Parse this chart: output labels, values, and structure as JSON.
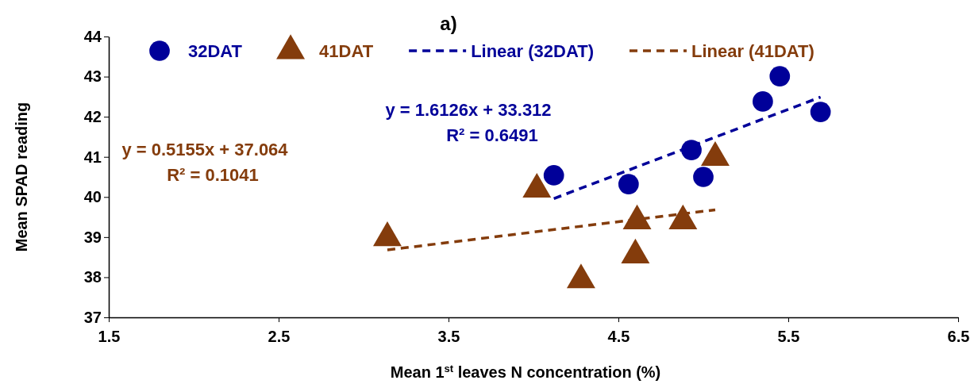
{
  "chart_data": {
    "type": "scatter",
    "title": "a)",
    "xlabel": "Mean 1$^{st}$ leaves N concentration (%)",
    "ylabel": "Mean SPAD reading",
    "xlim": [
      1.5,
      6.5
    ],
    "xticks": [
      1.5,
      2.5,
      3.5,
      4.5,
      5.5,
      6.5
    ],
    "ylim": [
      37,
      44
    ],
    "yticks": [
      37,
      38,
      39,
      40,
      41,
      42,
      43,
      44
    ],
    "grid": false,
    "legend": "top",
    "series": [
      {
        "name": "32DAT",
        "color": "#000099",
        "marker": "circle",
        "x": [
          4.12,
          4.56,
          4.93,
          5.0,
          5.35,
          5.45,
          5.69
        ],
        "values": [
          40.54,
          40.32,
          41.17,
          40.5,
          42.38,
          43.01,
          42.12
        ]
      },
      {
        "name": "41DAT",
        "color": "#843c0c",
        "marker": "triangle",
        "x": [
          3.14,
          4.02,
          5.07,
          4.61,
          4.88,
          4.6,
          4.28
        ],
        "values": [
          38.98,
          40.19,
          40.98,
          39.4,
          39.4,
          38.55,
          37.93
        ]
      },
      {
        "name": "Linear (32DAT)",
        "type": "line",
        "color": "#000099",
        "marker": "none",
        "line_style": "dashed",
        "x": [
          4.12,
          5.69
        ],
        "values": [
          39.96,
          42.49
        ]
      },
      {
        "name": "Linear (41DAT)",
        "type": "line",
        "color": "#843c0c",
        "marker": "none",
        "line_style": "dashed",
        "x": [
          3.14,
          5.07
        ],
        "values": [
          38.68,
          39.68
        ]
      }
    ],
    "annotations": [
      "y = 1.6126x + 33.312",
      "R² = 0.6491",
      "y = 0.5155x + 37.064",
      "R² = 0.1041"
    ]
  }
}
